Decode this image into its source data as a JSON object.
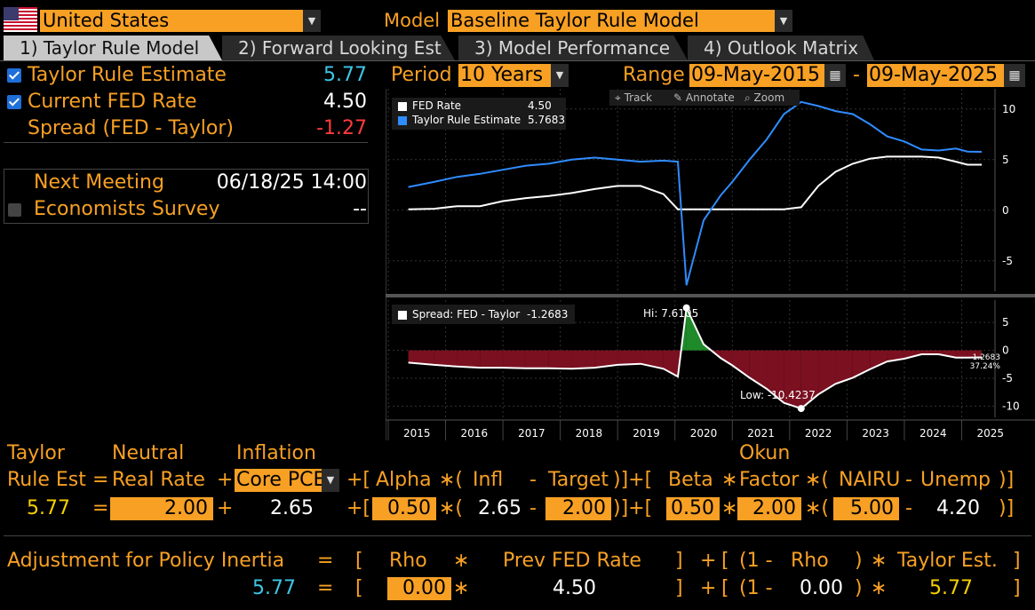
{
  "header": {
    "country": "United States",
    "model_label": "Model",
    "model": "Baseline Taylor Rule Model"
  },
  "tabs": [
    {
      "label": "1) Taylor Rule Model",
      "active": true
    },
    {
      "label": "2) Forward Looking Est",
      "active": false
    },
    {
      "label": "3) Model Performance",
      "active": false
    },
    {
      "label": "4) Outlook Matrix",
      "active": false
    }
  ],
  "summary": {
    "taylor_label": "Taylor Rule Estimate",
    "taylor_value": "5.77",
    "fed_label": "Current FED Rate",
    "fed_value": "4.50",
    "spread_label": "Spread (FED - Taylor)",
    "spread_value": "-1.27"
  },
  "meeting": {
    "next_label": "Next Meeting",
    "next_value": "06/18/25 14:00",
    "survey_label": "Economists Survey",
    "survey_value": "--"
  },
  "controls": {
    "period_label": "Period",
    "period": "10 Years",
    "range_label": "Range",
    "range_start": "09-May-2015",
    "range_dash": "-",
    "range_end": "09-May-2025"
  },
  "toolbar": {
    "track": "Track",
    "annotate": "Annotate",
    "zoom": "Zoom"
  },
  "chart_data": [
    {
      "type": "line",
      "legend": [
        {
          "name": "FED Rate",
          "value": "4.50",
          "color": "#ffffff"
        },
        {
          "name": "Taylor Rule Estimate",
          "value": "5.7683",
          "color": "#2f8cff"
        }
      ],
      "x": [
        2015.35,
        2015.8,
        2016.2,
        2016.6,
        2017.0,
        2017.4,
        2017.8,
        2018.2,
        2018.6,
        2019.0,
        2019.4,
        2019.8,
        2020.05,
        2020.2,
        2020.5,
        2020.8,
        2021.0,
        2021.3,
        2021.6,
        2021.9,
        2022.2,
        2022.5,
        2022.8,
        2023.1,
        2023.4,
        2023.7,
        2024.0,
        2024.3,
        2024.6,
        2024.9,
        2025.1,
        2025.35
      ],
      "series": [
        {
          "name": "FED Rate",
          "color": "#ffffff",
          "values": [
            0.1,
            0.15,
            0.4,
            0.4,
            0.9,
            1.2,
            1.4,
            1.7,
            2.1,
            2.4,
            2.4,
            1.6,
            0.1,
            0.1,
            0.1,
            0.1,
            0.1,
            0.1,
            0.1,
            0.1,
            0.3,
            2.4,
            3.8,
            4.6,
            5.1,
            5.3,
            5.3,
            5.3,
            5.2,
            4.8,
            4.5,
            4.5
          ]
        },
        {
          "name": "Taylor Rule Estimate",
          "color": "#2f8cff",
          "values": [
            2.3,
            2.8,
            3.3,
            3.6,
            4.0,
            4.4,
            4.6,
            5.0,
            5.2,
            5.0,
            4.8,
            4.9,
            4.8,
            -7.4,
            -1.0,
            1.5,
            2.8,
            5.0,
            7.0,
            9.5,
            10.7,
            10.3,
            9.8,
            9.5,
            8.5,
            7.3,
            6.8,
            6.0,
            5.9,
            6.1,
            5.8,
            5.77
          ]
        }
      ],
      "ylim": [
        -8,
        12
      ],
      "yticks": [
        10,
        5,
        0,
        -5
      ]
    },
    {
      "type": "area",
      "legend": [
        {
          "name": "Spread: FED - Taylor",
          "value": "-1.2683",
          "color": "#ffffff"
        }
      ],
      "x": [
        2015.35,
        2015.8,
        2016.2,
        2016.6,
        2017.0,
        2017.4,
        2017.8,
        2018.2,
        2018.6,
        2019.0,
        2019.4,
        2019.8,
        2020.05,
        2020.2,
        2020.5,
        2020.8,
        2021.0,
        2021.3,
        2021.6,
        2021.9,
        2022.2,
        2022.5,
        2022.8,
        2023.1,
        2023.4,
        2023.7,
        2024.0,
        2024.3,
        2024.6,
        2024.9,
        2025.1,
        2025.35
      ],
      "values": [
        -2.2,
        -2.6,
        -2.9,
        -3.1,
        -3.1,
        -3.2,
        -3.2,
        -3.3,
        -3.1,
        -2.6,
        -2.4,
        -3.3,
        -4.7,
        7.6105,
        1.1,
        -1.4,
        -2.7,
        -4.9,
        -6.9,
        -9.4,
        -10.4237,
        -7.9,
        -6.0,
        -4.9,
        -3.4,
        -2.0,
        -1.5,
        -0.7,
        -0.7,
        -1.3,
        -1.3,
        -1.2683
      ],
      "hi_label": "Hi: 7.6105",
      "low_label": "Low: -10.4237",
      "last_value": "-1.2683",
      "last_pct": "37.24%",
      "ylim": [
        -12,
        9
      ],
      "yticks": [
        5,
        0,
        -5,
        -10
      ]
    }
  ],
  "x_axis_labels": [
    "2015",
    "2016",
    "2017",
    "2018",
    "2019",
    "2020",
    "2021",
    "2022",
    "2023",
    "2024",
    "2025"
  ],
  "formula": {
    "lbl_taylor": "Taylor",
    "lbl_rule_est": "Rule Est",
    "lbl_neutral": "Neutral",
    "lbl_real_rate": "Real Rate",
    "lbl_inflation": "Inflation",
    "inflation_measure": "Core PCE",
    "lbl_okun": "Okun",
    "lbl_alpha": "Alpha",
    "lbl_infl": "Infl",
    "lbl_target": "Target",
    "lbl_beta": "Beta",
    "lbl_factor": "Factor",
    "lbl_nairu": "NAIRU",
    "lbl_unemp": "Unemp",
    "taylor_est": "5.77",
    "neutral_rate": "2.00",
    "inflation": "2.65",
    "alpha": "0.50",
    "infl": "2.65",
    "target": "2.00",
    "beta": "0.50",
    "okun_factor": "2.00",
    "nairu": "5.00",
    "unemp": "4.20"
  },
  "inertia": {
    "label": "Adjustment for Policy Inertia",
    "lbl_rho": "Rho",
    "lbl_prev_fed": "Prev FED Rate",
    "lbl_one_minus": "(1 -",
    "lbl_rho2": "Rho",
    "lbl_taylor_est": "Taylor Est.",
    "result": "5.77",
    "rho": "0.00",
    "prev_fed": "4.50",
    "one_minus": "(1 -",
    "rho2": "0.00",
    "taylor_est": "5.77"
  }
}
